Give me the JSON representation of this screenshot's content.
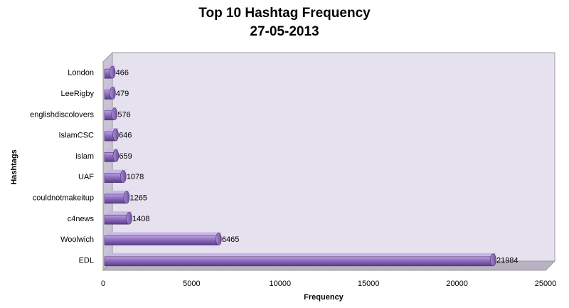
{
  "chart_data": {
    "type": "bar",
    "orientation": "horizontal",
    "title": "Top 10 Hashtag Frequency",
    "subtitle": "27-05-2013",
    "xlabel": "Frequency",
    "ylabel": "Hashtags",
    "xlim": [
      0,
      25000
    ],
    "xticks": [
      0,
      5000,
      10000,
      15000,
      20000,
      25000
    ],
    "categories": [
      "London",
      "LeeRigby",
      "englishdiscolovers",
      "IslamCSC",
      "islam",
      "UAF",
      "couldnotmakeitup",
      "c4news",
      "Woolwich",
      "EDL"
    ],
    "values": [
      466,
      479,
      576,
      646,
      659,
      1078,
      1265,
      1408,
      6465,
      21984
    ],
    "bar_color": "#8a6bb8",
    "plot_wall_color": "#e6e1ee",
    "grid": false,
    "legend": "none"
  }
}
